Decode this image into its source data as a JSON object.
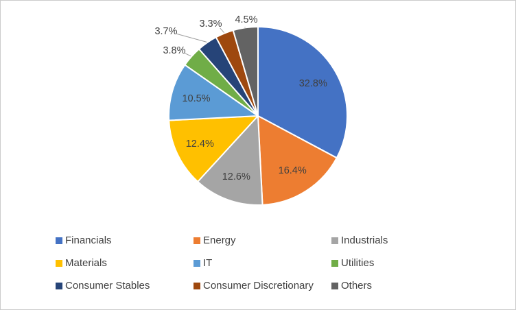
{
  "chart_data": {
    "type": "pie",
    "title": "",
    "categories": [
      "Financials",
      "Energy",
      "Industrials",
      "Materials",
      "IT",
      "Utilities",
      "Consumer Stables",
      "Consumer Discretionary",
      "Others"
    ],
    "values": [
      32.8,
      16.4,
      12.6,
      12.4,
      10.5,
      3.8,
      3.7,
      3.3,
      4.5
    ],
    "labels": [
      "32.8%",
      "16.4%",
      "12.6%",
      "12.4%",
      "10.5%",
      "3.8%",
      "3.7%",
      "3.3%",
      "4.5%"
    ],
    "colors": [
      "#4472C4",
      "#ED7D31",
      "#A5A5A5",
      "#FFC000",
      "#5B9BD5",
      "#70AD47",
      "#264478",
      "#9E480E",
      "#636363"
    ],
    "start_angle": 0,
    "direction": "clockwise",
    "legend_position": "bottom",
    "label_color": "#404040",
    "leader_line_color": "#9d9d9d",
    "slice_border_color": "#ffffff"
  },
  "canvas": {
    "background": "#ffffff",
    "border_color": "#cbcbcb"
  }
}
